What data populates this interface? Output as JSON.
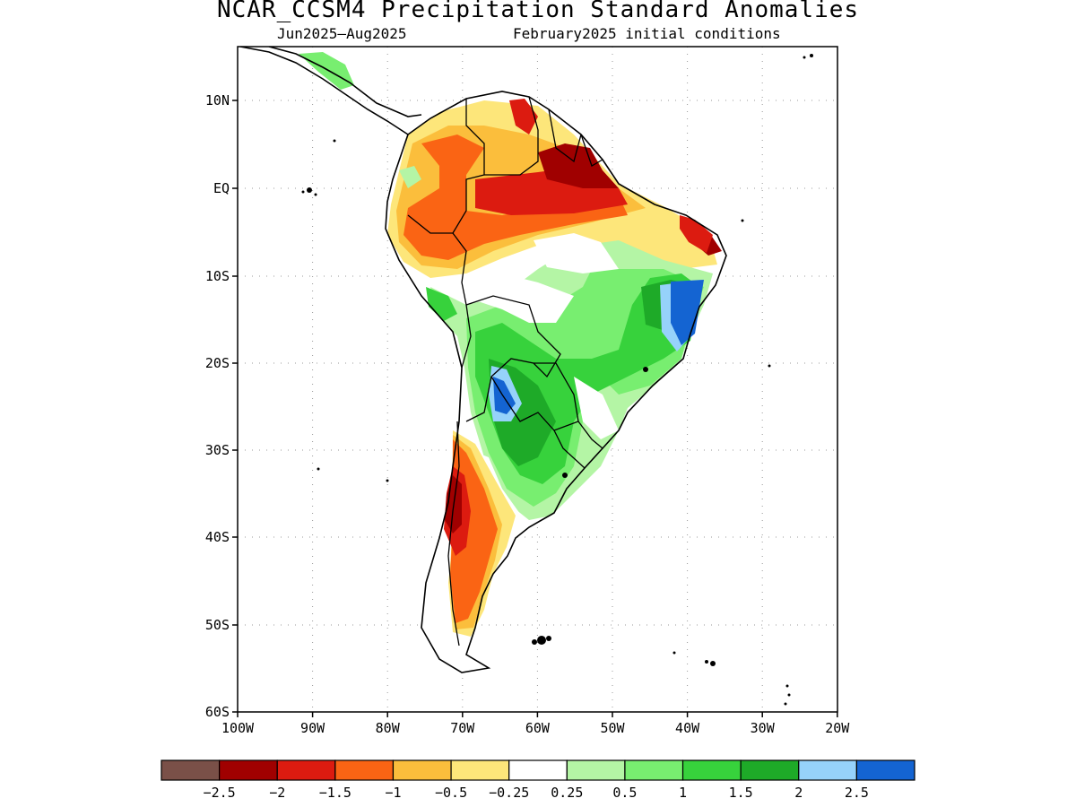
{
  "title": "NCAR_CCSM4 Precipitation Standard Anomalies",
  "subtitle_period": "Jun2025–Aug2025",
  "subtitle_init": "February2025 initial conditions",
  "lat_labels": [
    "10N",
    "EQ",
    "10S",
    "20S",
    "30S",
    "40S",
    "50S",
    "60S"
  ],
  "lon_labels": [
    "100W",
    "90W",
    "80W",
    "70W",
    "60W",
    "50W",
    "40W",
    "30W",
    "20W"
  ],
  "colorbar": {
    "colors": [
      "#7a5048",
      "#a00000",
      "#dc1b10",
      "#fa6414",
      "#fbbe3c",
      "#fde67a",
      "#ffffff",
      "#b4f5a5",
      "#78ee70",
      "#37d23c",
      "#1eaa28",
      "#96d2fa",
      "#1464d2"
    ],
    "labels": [
      "−2.5",
      "−2",
      "−1.5",
      "−1",
      "−0.5",
      "−0.25",
      "0.25",
      "0.5",
      "1",
      "1.5",
      "2",
      "2.5"
    ]
  }
}
